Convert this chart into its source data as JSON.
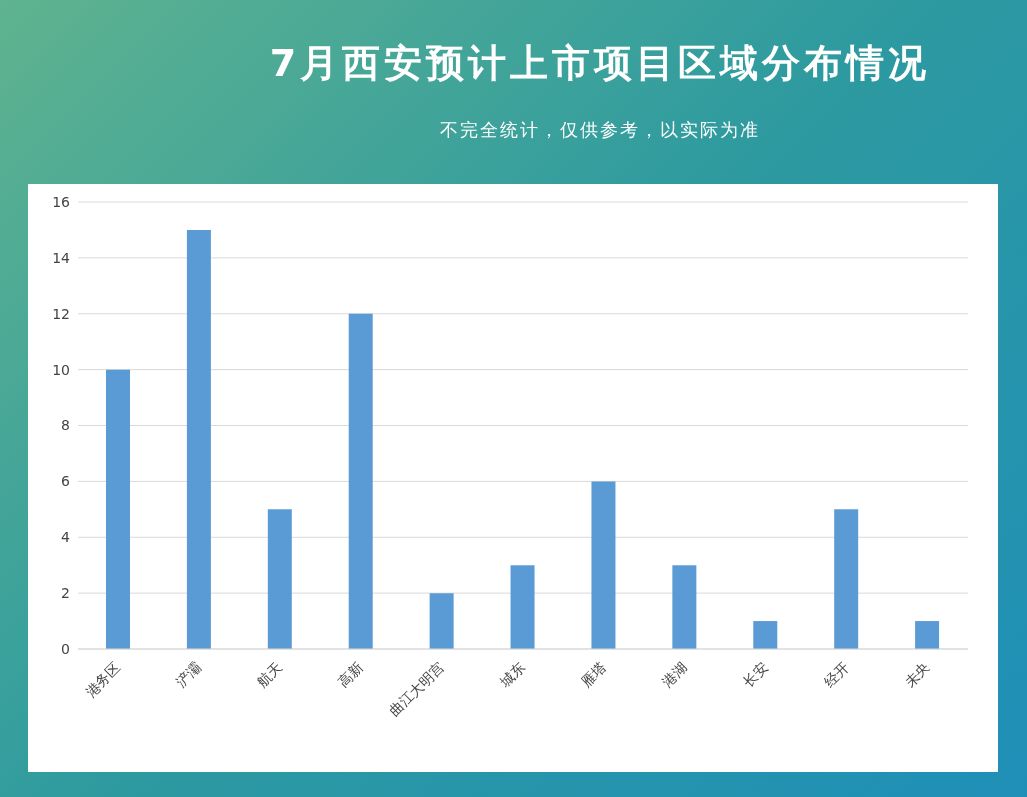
{
  "chart_data": {
    "type": "bar",
    "title": "7月西安预计上市项目区域分布情况",
    "subtitle": "不完全统计，仅供参考，以实际为准",
    "categories": [
      "港务区",
      "浐灞",
      "航天",
      "高新",
      "曲江大明宫",
      "城东",
      "雁塔",
      "港湖",
      "长安",
      "经开",
      "未央"
    ],
    "values": [
      10,
      15,
      5,
      12,
      2,
      3,
      6,
      3,
      1,
      5,
      1
    ],
    "color": "#5b9bd5",
    "ylim": [
      0,
      16
    ],
    "yticks": [
      0,
      2,
      4,
      6,
      8,
      10,
      12,
      14,
      16
    ],
    "grid": "y"
  }
}
